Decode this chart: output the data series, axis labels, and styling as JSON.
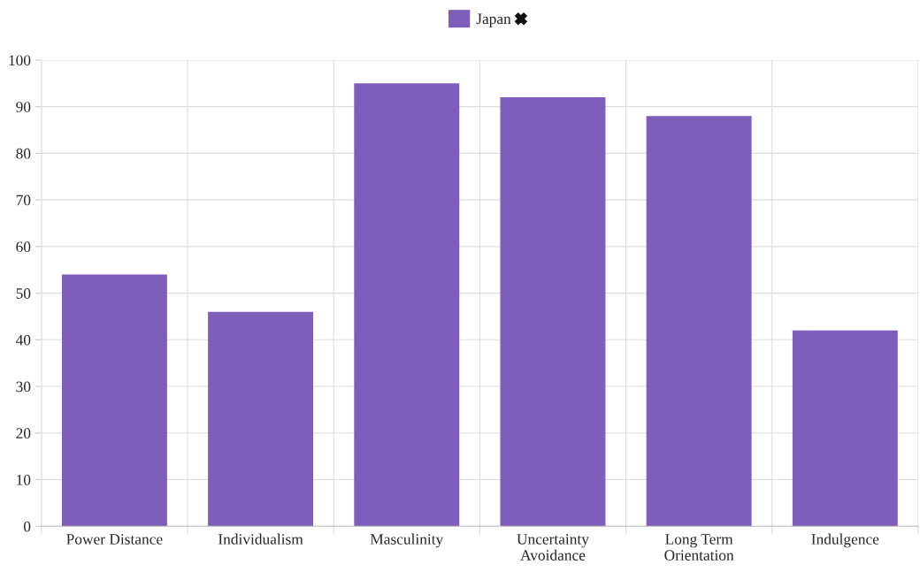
{
  "chart_data": {
    "type": "bar",
    "categories": [
      "Power Distance",
      "Individualism",
      "Masculinity",
      "Uncertainty Avoidance",
      "Long Term Orientation",
      "Indulgence"
    ],
    "series": [
      {
        "name": "Japan",
        "color": "#7e5eba",
        "values": [
          54,
          46,
          95,
          92,
          88,
          42
        ]
      }
    ],
    "ylim": [
      0,
      100
    ],
    "yticks": [
      0,
      10,
      20,
      30,
      40,
      50,
      60,
      70,
      80,
      90,
      100
    ],
    "grid": true,
    "legend": "top"
  }
}
